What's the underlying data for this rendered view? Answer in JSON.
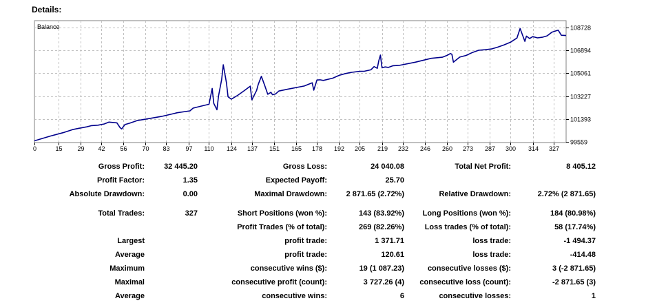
{
  "heading": "Details:",
  "colors": {
    "line": "#00008b",
    "grid": "#c0c0c0",
    "border": "#808080"
  },
  "chart_data": {
    "type": "line",
    "title": "Balance",
    "x_ticks": [
      "0",
      "15",
      "29",
      "42",
      "56",
      "70",
      "83",
      "97",
      "110",
      "124",
      "137",
      "151",
      "165",
      "178",
      "192",
      "205",
      "219",
      "232",
      "246",
      "260",
      "273",
      "287",
      "300",
      "314",
      "327"
    ],
    "y_ticks": [
      "108728",
      "106894",
      "105061",
      "103227",
      "101393",
      "99559"
    ],
    "xlim": [
      0,
      335
    ],
    "ylim": [
      99510,
      109280
    ],
    "grid": true,
    "series": [
      {
        "x": [
          0,
          10,
          18,
          24,
          28,
          33,
          36,
          40,
          44,
          47,
          52,
          54,
          55,
          57,
          60,
          65,
          70,
          80,
          90,
          98,
          100,
          105,
          110,
          112,
          113,
          115,
          116,
          118,
          119,
          121,
          122,
          124,
          125,
          128,
          132,
          136,
          137,
          140,
          141,
          143,
          145,
          147,
          149,
          150,
          152,
          154,
          160,
          170,
          175,
          176,
          178,
          180,
          182,
          188,
          192,
          196,
          200,
          205,
          208,
          212,
          214,
          216,
          217,
          218,
          219,
          221,
          223,
          226,
          230,
          240,
          250,
          257,
          260,
          262,
          263,
          264,
          268,
          272,
          276,
          280,
          284,
          288,
          292,
          296,
          300,
          304,
          306,
          309,
          310,
          312,
          314,
          317,
          320,
          323,
          326,
          330,
          332,
          335
        ],
        "y": [
          99650,
          100030,
          100300,
          100550,
          100650,
          100770,
          100870,
          100900,
          101000,
          101150,
          101090,
          100700,
          100600,
          100950,
          101060,
          101280,
          101380,
          101600,
          101900,
          102050,
          102270,
          102430,
          102580,
          103850,
          102650,
          102140,
          103240,
          104580,
          105740,
          104300,
          103180,
          102990,
          103060,
          103290,
          103650,
          104030,
          102930,
          103690,
          104160,
          104820,
          104130,
          103380,
          103540,
          103340,
          103410,
          103640,
          103800,
          104040,
          104300,
          103710,
          104520,
          104540,
          104490,
          104670,
          104900,
          105040,
          105140,
          105220,
          105230,
          105340,
          105600,
          105460,
          106090,
          106520,
          105500,
          105570,
          105530,
          105670,
          105700,
          105950,
          106260,
          106350,
          106500,
          106640,
          106590,
          105950,
          106360,
          106490,
          106730,
          106910,
          106950,
          107010,
          107160,
          107340,
          107550,
          107890,
          108650,
          107620,
          108040,
          107850,
          108000,
          107900,
          107950,
          108060,
          108350,
          108520,
          108110,
          108090
        ]
      }
    ]
  },
  "stats": {
    "gross_profit_label": "Gross Profit:",
    "gross_profit": "32 445.20",
    "gross_loss_label": "Gross Loss:",
    "gross_loss": "24 040.08",
    "net_profit_label": "Total Net Profit:",
    "net_profit": "8 405.12",
    "profit_factor_label": "Profit Factor:",
    "profit_factor": "1.35",
    "expected_payoff_label": "Expected Payoff:",
    "expected_payoff": "25.70",
    "abs_drawdown_label": "Absolute Drawdown:",
    "abs_drawdown": "0.00",
    "max_drawdown_label": "Maximal Drawdown:",
    "max_drawdown": "2 871.65 (2.72%)",
    "rel_drawdown_label": "Relative Drawdown:",
    "rel_drawdown": "2.72% (2 871.65)",
    "total_trades_label": "Total Trades:",
    "total_trades": "327",
    "short_label": "Short Positions (won %):",
    "short": "143 (83.92%)",
    "long_label": "Long Positions (won %):",
    "long": "184 (80.98%)",
    "profit_trades_label": "Profit Trades (% of total):",
    "profit_trades": "269 (82.26%)",
    "loss_trades_label": "Loss trades (% of total):",
    "loss_trades": "58 (17.74%)",
    "largest_label": "Largest",
    "largest_profit_label": "profit trade:",
    "largest_profit": "1 371.71",
    "largest_loss_label": "loss trade:",
    "largest_loss": "-1 494.37",
    "average_label": "Average",
    "average_profit_label": "profit trade:",
    "average_profit": "120.61",
    "average_loss_label": "loss trade:",
    "average_loss": "-414.48",
    "maximum_label": "Maximum",
    "max_cons_wins_label": "consecutive wins ($):",
    "max_cons_wins": "19 (1 087.23)",
    "max_cons_losses_label": "consecutive losses ($):",
    "max_cons_losses": "3 (-2 871.65)",
    "maximal_label": "Maximal",
    "maximal_cons_profit_label": "consecutive profit (count):",
    "maximal_cons_profit": "3 727.26 (4)",
    "maximal_cons_loss_label": "consecutive loss (count):",
    "maximal_cons_loss": "-2 871.65 (3)",
    "average2_label": "Average",
    "avg_cons_wins_label": "consecutive wins:",
    "avg_cons_wins": "6",
    "avg_cons_losses_label": "consecutive losses:",
    "avg_cons_losses": "1"
  }
}
